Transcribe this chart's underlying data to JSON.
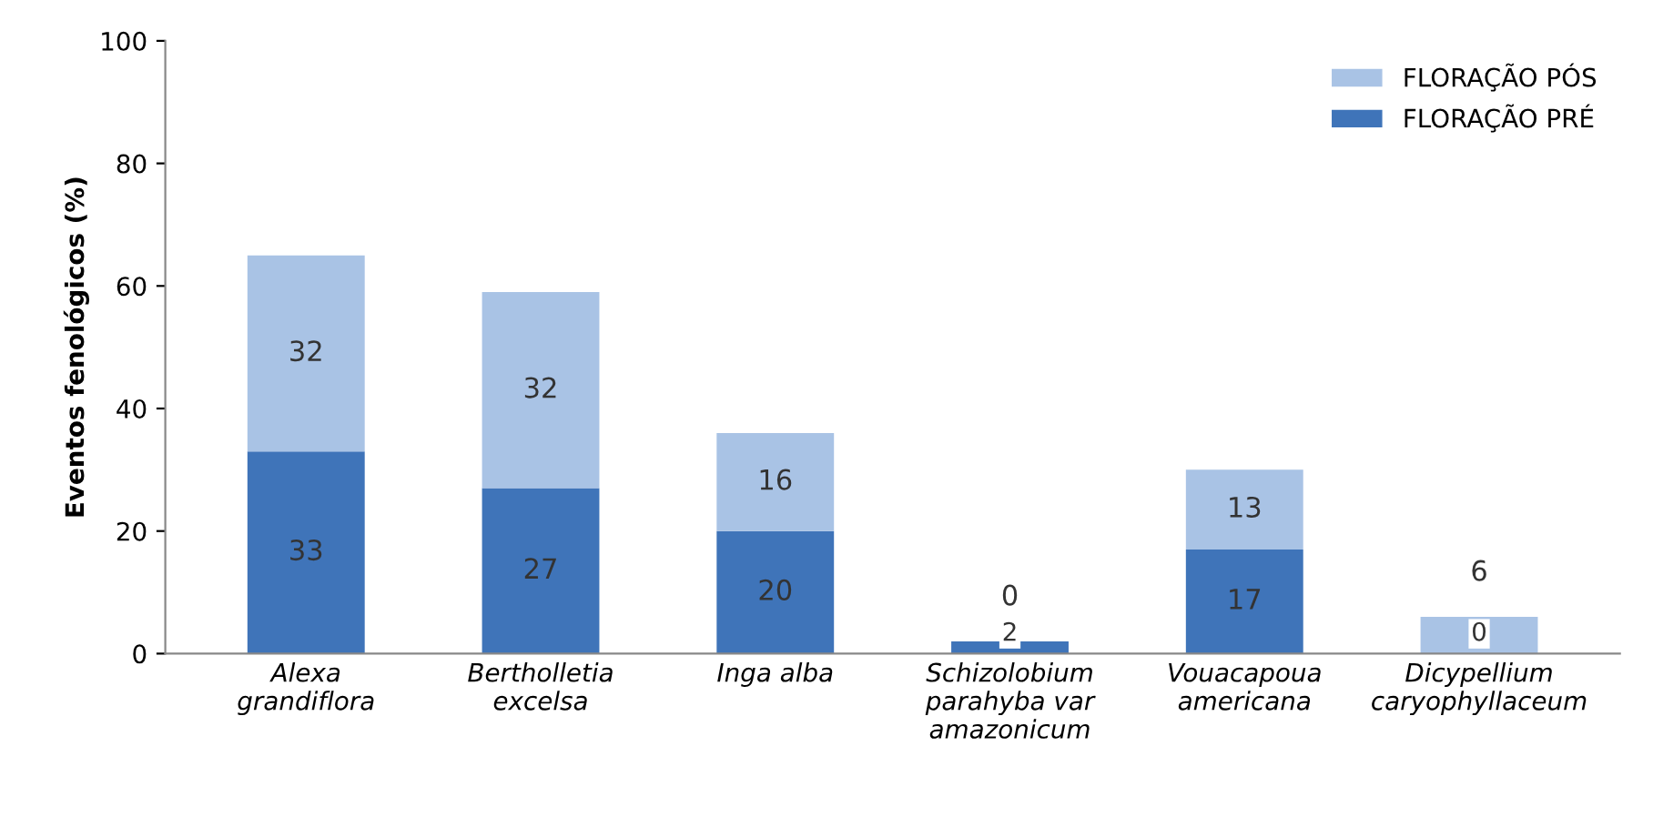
{
  "chart_data": {
    "type": "bar",
    "stacked": true,
    "ylabel": "Eventos fenológicos (%)",
    "categories": [
      "Alexa\ngrandiflora",
      "Bertholletia\nexcelsa",
      "Inga alba",
      "Schizolobium\nparahyba var\namazonicum",
      "Vouacapoua\namericana",
      "Dicypellium\ncaryophyllaceum"
    ],
    "series": [
      {
        "name": "FLORAÇÃO PRÉ",
        "color": "#3f74b9",
        "values": [
          33,
          27,
          20,
          2,
          17,
          0
        ]
      },
      {
        "name": "FLORAÇÃO PÓS",
        "color": "#a9c3e5",
        "values": [
          32,
          32,
          16,
          0,
          13,
          6
        ]
      }
    ],
    "ylim": [
      0,
      100
    ],
    "yticks": [
      0,
      20,
      40,
      60,
      80,
      100
    ],
    "data_labels": true,
    "legend": "top right",
    "grid": false
  }
}
